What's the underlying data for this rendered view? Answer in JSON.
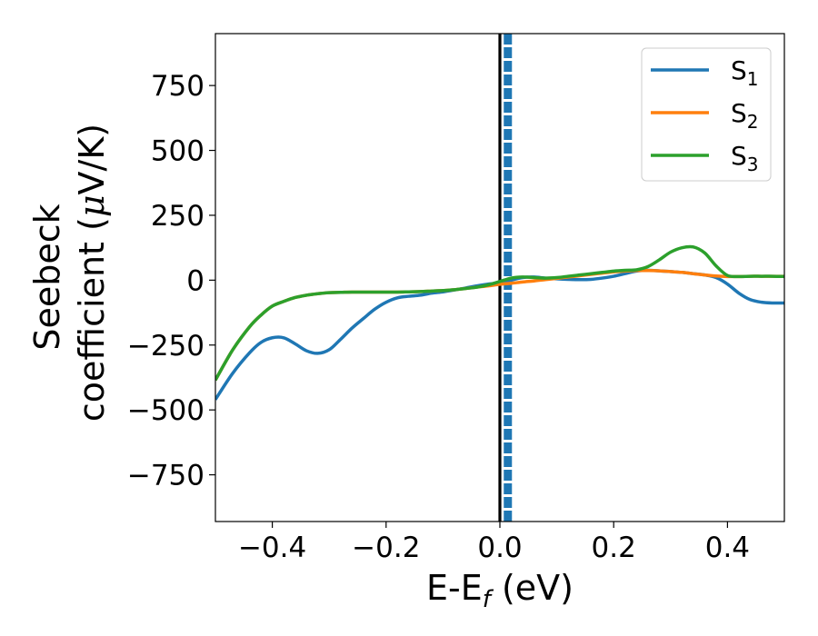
{
  "chart_data": {
    "type": "line",
    "xlabel": "E-E",
    "xlabel_sub": "f",
    "xlabel_unit": " (eV)",
    "ylabel_line1": "Seebeck",
    "ylabel_line2_pre": "coefficient  (",
    "ylabel_mu": "μ",
    "ylabel_line2_post": "V/K)",
    "xlim": [
      -0.5,
      0.5
    ],
    "ylim": [
      -930,
      950
    ],
    "xticks": [
      -0.4,
      -0.2,
      0.0,
      0.2,
      0.4
    ],
    "xtick_labels": [
      "−0.4",
      "−0.2",
      "0.0",
      "0.2",
      "0.4"
    ],
    "yticks": [
      750,
      500,
      250,
      0,
      -250,
      -500,
      -750
    ],
    "ytick_labels": [
      "750",
      "500",
      "250",
      "0",
      "−250",
      "−500",
      "−750"
    ],
    "legend_position": "top-right",
    "vertical_lines": [
      {
        "x": 0.0,
        "color": "#000000",
        "style": "solid"
      },
      {
        "x": 0.014,
        "color": "#1f77b4",
        "style": "dashed"
      }
    ],
    "series": [
      {
        "name": "S",
        "sub": "1",
        "color": "#1f77b4",
        "x": [
          -0.5,
          -0.47,
          -0.44,
          -0.42,
          -0.4,
          -0.38,
          -0.36,
          -0.34,
          -0.32,
          -0.3,
          -0.28,
          -0.26,
          -0.24,
          -0.22,
          -0.2,
          -0.18,
          -0.16,
          -0.14,
          -0.12,
          -0.1,
          -0.08,
          -0.06,
          -0.04,
          -0.02,
          0.0,
          0.02,
          0.04,
          0.06,
          0.08,
          0.1,
          0.12,
          0.14,
          0.16,
          0.18,
          0.2,
          0.22,
          0.24,
          0.26,
          0.28,
          0.3,
          0.32,
          0.34,
          0.36,
          0.38,
          0.4,
          0.42,
          0.44,
          0.46,
          0.48,
          0.5
        ],
        "y": [
          -460,
          -360,
          -280,
          -240,
          -222,
          -222,
          -245,
          -272,
          -282,
          -268,
          -228,
          -185,
          -148,
          -112,
          -85,
          -68,
          -62,
          -58,
          -50,
          -45,
          -38,
          -30,
          -22,
          -15,
          -10,
          0,
          10,
          12,
          8,
          5,
          3,
          2,
          3,
          8,
          15,
          25,
          35,
          38,
          36,
          33,
          30,
          25,
          20,
          10,
          -15,
          -50,
          -75,
          -85,
          -88,
          -88
        ]
      },
      {
        "name": "S",
        "sub": "2",
        "color": "#ff7f0e",
        "x": [
          -0.5,
          -0.47,
          -0.44,
          -0.42,
          -0.4,
          -0.38,
          -0.36,
          -0.34,
          -0.32,
          -0.3,
          -0.28,
          -0.26,
          -0.24,
          -0.22,
          -0.2,
          -0.18,
          -0.16,
          -0.14,
          -0.12,
          -0.1,
          -0.08,
          -0.06,
          -0.04,
          -0.02,
          0.0,
          0.02,
          0.04,
          0.06,
          0.08,
          0.1,
          0.12,
          0.14,
          0.16,
          0.18,
          0.2,
          0.22,
          0.24,
          0.26,
          0.28,
          0.3,
          0.32,
          0.34,
          0.36,
          0.38,
          0.4,
          0.42,
          0.44,
          0.46,
          0.48,
          0.5
        ],
        "y": [
          -385,
          -270,
          -180,
          -135,
          -100,
          -82,
          -67,
          -58,
          -52,
          -48,
          -47,
          -46,
          -46,
          -46,
          -46,
          -46,
          -45,
          -44,
          -42,
          -40,
          -37,
          -32,
          -27,
          -22,
          -16,
          -12,
          -7,
          -3,
          2,
          7,
          12,
          17,
          22,
          27,
          32,
          35,
          37,
          37,
          36,
          33,
          30,
          25,
          20,
          16,
          14,
          14,
          15,
          15,
          15,
          15
        ]
      },
      {
        "name": "S",
        "sub": "3",
        "color": "#2ca02c",
        "x": [
          -0.5,
          -0.47,
          -0.44,
          -0.42,
          -0.4,
          -0.38,
          -0.36,
          -0.34,
          -0.32,
          -0.3,
          -0.28,
          -0.26,
          -0.24,
          -0.22,
          -0.2,
          -0.18,
          -0.16,
          -0.14,
          -0.12,
          -0.1,
          -0.08,
          -0.06,
          -0.04,
          -0.02,
          0.0,
          0.02,
          0.04,
          0.06,
          0.08,
          0.1,
          0.12,
          0.14,
          0.16,
          0.18,
          0.2,
          0.22,
          0.24,
          0.26,
          0.28,
          0.3,
          0.32,
          0.34,
          0.36,
          0.38,
          0.4,
          0.42,
          0.44,
          0.46,
          0.48,
          0.5
        ],
        "y": [
          -385,
          -270,
          -180,
          -135,
          -100,
          -82,
          -67,
          -58,
          -52,
          -48,
          -47,
          -46,
          -46,
          -46,
          -46,
          -46,
          -45,
          -44,
          -42,
          -40,
          -37,
          -32,
          -27,
          -18,
          -5,
          8,
          12,
          10,
          8,
          10,
          15,
          20,
          25,
          30,
          35,
          38,
          40,
          52,
          78,
          108,
          125,
          128,
          105,
          55,
          18,
          14,
          15,
          15,
          15,
          14
        ]
      }
    ]
  }
}
